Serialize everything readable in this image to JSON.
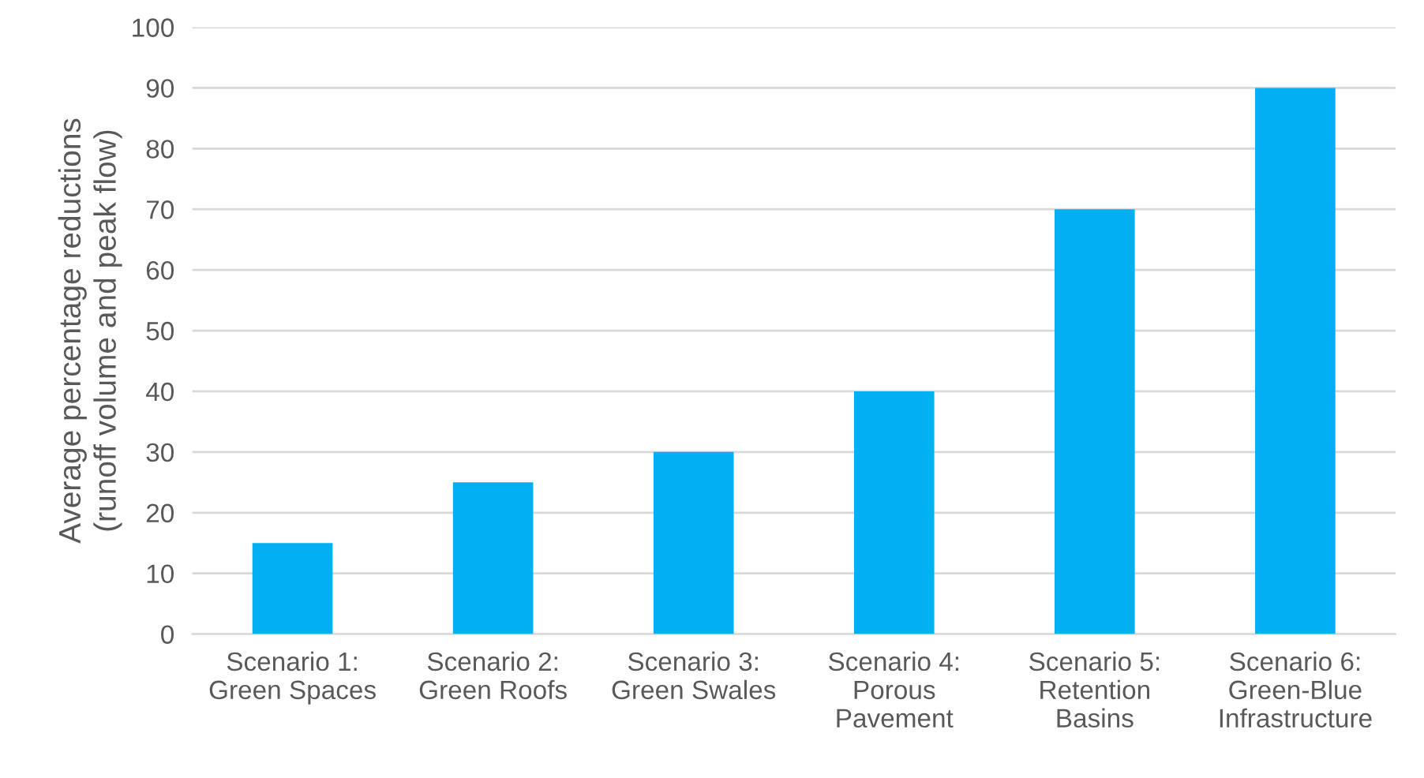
{
  "chart_data": {
    "type": "bar",
    "ylabel": "Average percentage reductions\n(runoff volume and peak flow)",
    "categories": [
      "Scenario 1:\nGreen Spaces",
      "Scenario 2:\nGreen Roofs",
      "Scenario 3:\nGreen Swales",
      "Scenario 4:\nPorous\nPavement",
      "Scenario 5:\nRetention\nBasins",
      "Scenario 6:\nGreen-Blue\nInfrastructure"
    ],
    "values": [
      15,
      25,
      30,
      40,
      70,
      90
    ],
    "color": "#00b0f0",
    "ylim": [
      0,
      100
    ],
    "yticks": [
      0,
      10,
      20,
      30,
      40,
      50,
      60,
      70,
      80,
      90,
      100
    ],
    "grid": "y"
  }
}
